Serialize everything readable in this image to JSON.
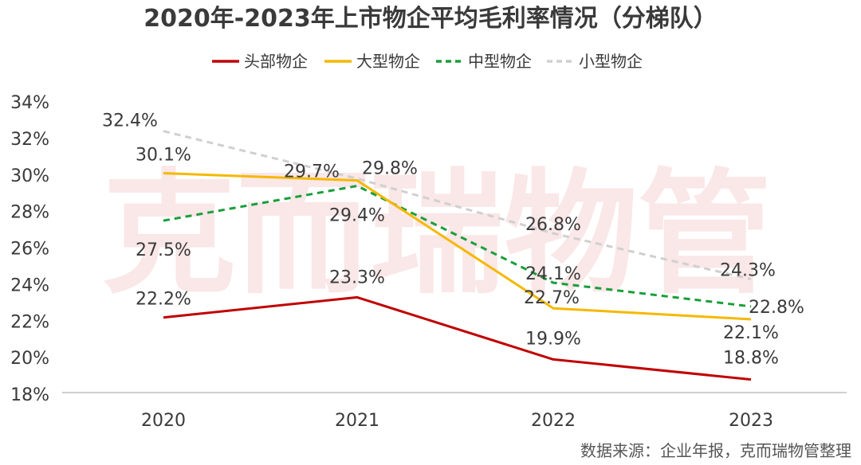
{
  "watermark": "克而瑞物管",
  "source": "数据来源：企业年报，克而瑞物管整理",
  "chart_data": {
    "type": "line",
    "title": "2020年-2023年上市物企平均毛利率情况（分梯队）",
    "categories": [
      "2020",
      "2021",
      "2022",
      "2023"
    ],
    "ylim": [
      18,
      34
    ],
    "yticks": [
      18,
      20,
      22,
      24,
      26,
      28,
      30,
      32,
      34
    ],
    "ytick_labels": [
      "18%",
      "20%",
      "22%",
      "24%",
      "26%",
      "28%",
      "30%",
      "32%",
      "34%"
    ],
    "grid": false,
    "legend_position": "top",
    "series": [
      {
        "name": "头部物企",
        "color": "#c00000",
        "dash": "solid",
        "values": [
          22.2,
          23.3,
          19.9,
          18.8
        ],
        "labels": [
          "22.2%",
          "23.3%",
          "19.9%",
          "18.8%"
        ]
      },
      {
        "name": "大型物企",
        "color": "#f5b800",
        "dash": "solid",
        "values": [
          30.1,
          29.7,
          22.7,
          22.1
        ],
        "labels": [
          "30.1%",
          "29.7%",
          "22.7%",
          "22.1%"
        ]
      },
      {
        "name": "中型物企",
        "color": "#1a9e3a",
        "dash": "dashed",
        "values": [
          27.5,
          29.4,
          24.1,
          22.8
        ],
        "labels": [
          "27.5%",
          "29.4%",
          "24.1%",
          "22.8%"
        ]
      },
      {
        "name": "小型物企",
        "color": "#d0d0d0",
        "dash": "dashed",
        "values": [
          32.4,
          29.8,
          26.8,
          24.3
        ],
        "labels": [
          "32.4%",
          "29.8%",
          "26.8%",
          "24.3%"
        ]
      }
    ]
  }
}
